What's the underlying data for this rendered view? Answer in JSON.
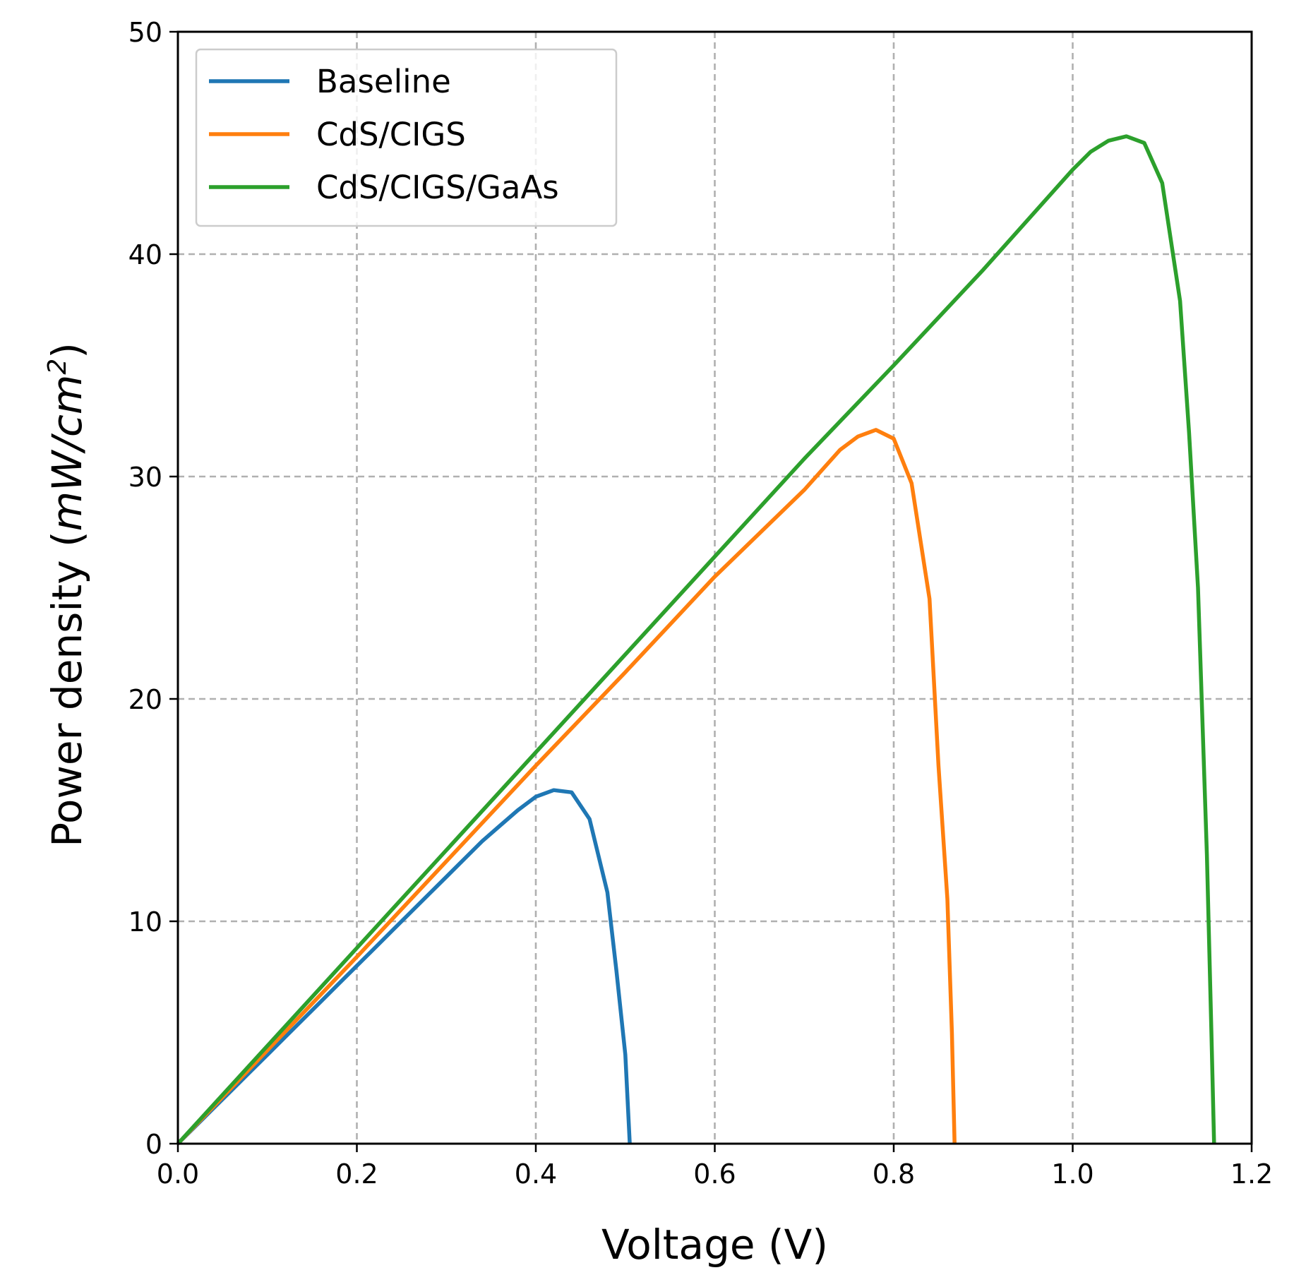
{
  "chart_data": {
    "type": "line",
    "title": "",
    "xlabel": "Voltage (V)",
    "ylabel": {
      "prefix": "Power density (",
      "unit": "mW/cm",
      "exponent": "2",
      "suffix": ")"
    },
    "xlim": [
      0.0,
      1.2
    ],
    "ylim": [
      0,
      50
    ],
    "xticks": [
      0.0,
      0.2,
      0.4,
      0.6,
      0.8,
      1.0,
      1.2
    ],
    "xtick_labels": [
      "0.0",
      "0.2",
      "0.4",
      "0.6",
      "0.8",
      "1.0",
      "1.2"
    ],
    "yticks": [
      0,
      10,
      20,
      30,
      40,
      50
    ],
    "ytick_labels": [
      "0",
      "10",
      "20",
      "30",
      "40",
      "50"
    ],
    "grid": true,
    "legend_position": "top-left",
    "series": [
      {
        "name": "Baseline",
        "color": "#1f77b4",
        "x": [
          0.0,
          0.02,
          0.04,
          0.06,
          0.08,
          0.1,
          0.12,
          0.14,
          0.16,
          0.18,
          0.2,
          0.22,
          0.24,
          0.26,
          0.28,
          0.3,
          0.32,
          0.34,
          0.36,
          0.38,
          0.4,
          0.42,
          0.44,
          0.46,
          0.48,
          0.49,
          0.5,
          0.505
        ],
        "y": [
          0.0,
          0.8,
          1.6,
          2.4,
          3.2,
          4.0,
          4.8,
          5.6,
          6.4,
          7.2,
          8.0,
          8.8,
          9.6,
          10.4,
          11.2,
          12.0,
          12.8,
          13.6,
          14.3,
          15.0,
          15.6,
          15.9,
          15.8,
          14.6,
          11.3,
          7.8,
          4.0,
          0.0
        ]
      },
      {
        "name": "CdS/CIGS",
        "color": "#ff7f0e",
        "x": [
          0.0,
          0.1,
          0.2,
          0.3,
          0.4,
          0.5,
          0.6,
          0.7,
          0.72,
          0.74,
          0.76,
          0.78,
          0.8,
          0.82,
          0.84,
          0.85,
          0.86,
          0.865,
          0.868
        ],
        "y": [
          0.0,
          4.2,
          8.4,
          12.7,
          17.0,
          21.2,
          25.5,
          29.4,
          30.3,
          31.2,
          31.8,
          32.1,
          31.7,
          29.7,
          24.5,
          17.0,
          11.0,
          5.0,
          0.0
        ]
      },
      {
        "name": "CdS/CIGS/GaAs",
        "color": "#2ca02c",
        "x": [
          0.0,
          0.1,
          0.2,
          0.3,
          0.4,
          0.5,
          0.6,
          0.7,
          0.8,
          0.9,
          1.0,
          1.02,
          1.04,
          1.06,
          1.08,
          1.1,
          1.12,
          1.13,
          1.14,
          1.15,
          1.155,
          1.158
        ],
        "y": [
          0.0,
          4.4,
          8.8,
          13.2,
          17.6,
          22.0,
          26.4,
          30.8,
          35.0,
          39.3,
          43.8,
          44.6,
          45.1,
          45.3,
          45.0,
          43.2,
          37.9,
          32.0,
          25.0,
          13.0,
          5.0,
          0.0
        ]
      }
    ]
  }
}
